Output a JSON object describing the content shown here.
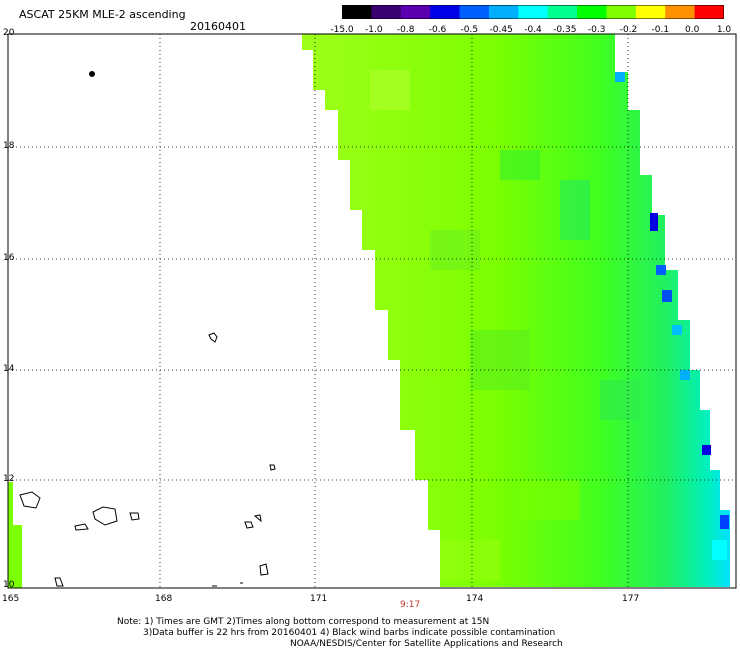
{
  "header": {
    "title": "ASCAT 25KM MLE-2 ascending",
    "date": "20160401"
  },
  "colorbar": {
    "labels": [
      "-15.0",
      "-1.0",
      "-0.8",
      "-0.6",
      "-0.5",
      "-0.45",
      "-0.4",
      "-0.35",
      "-0.3",
      "-0.2",
      "-0.1",
      "0.0",
      "1.0"
    ],
    "colors": [
      "#000000",
      "#3a0070",
      "#5a00b0",
      "#0000e8",
      "#0060ff",
      "#00b0ff",
      "#00ffff",
      "#00ff90",
      "#00ff00",
      "#80ff00",
      "#ffff00",
      "#ff9000",
      "#ff0000"
    ]
  },
  "axes": {
    "y_ticks": [
      "20",
      "18",
      "16",
      "14",
      "12",
      "10"
    ],
    "x_ticks": [
      "165",
      "168",
      "171",
      "174",
      "177"
    ],
    "time_label": "9:17"
  },
  "notes": {
    "line1": "Note: 1) Times are GMT 2)Times along bottom correspond to measurement at 15N",
    "line2": "3)Data buffer is 22 hrs from 20160401 4) Black wind barbs indicate possible contamination",
    "line3": "NOAA/NESDIS/Center for Satellite Applications and Research"
  }
}
